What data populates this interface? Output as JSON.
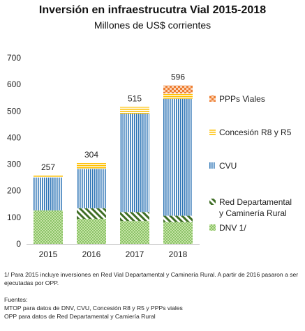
{
  "chart_data": {
    "type": "bar",
    "stacked": true,
    "title": "Inversión en infraestrucutra Vial 2015-2018",
    "subtitle": "Millones de US$ corrientes",
    "categories": [
      "2015",
      "2016",
      "2017",
      "2018"
    ],
    "yticks": [
      "0",
      "100",
      "200",
      "300",
      "400",
      "500",
      "600",
      "700"
    ],
    "ylim": [
      0,
      700
    ],
    "grid": false,
    "legend_position": "right",
    "totals": [
      "257",
      "304",
      "515",
      "596"
    ],
    "series": [
      {
        "name": "DNV 1/",
        "values": [
          126,
          94,
          86,
          82
        ],
        "color": "#92d050",
        "pattern": "dots"
      },
      {
        "name": "Red Departamental y Caminería Rural",
        "values": [
          0,
          40,
          34,
          24
        ],
        "color": "#548235",
        "pattern": "diagonal"
      },
      {
        "name": "CVU",
        "values": [
          124,
          148,
          370,
          440
        ],
        "color": "#2e75b6",
        "pattern": "vertical"
      },
      {
        "name": "Concesión R8 y R5",
        "values": [
          7,
          22,
          25,
          20
        ],
        "color": "#ffc000",
        "pattern": "horizontal"
      },
      {
        "name": "PPPs Viales",
        "values": [
          0,
          0,
          0,
          30
        ],
        "color": "#ed7d31",
        "pattern": "checker"
      }
    ]
  },
  "notes": {
    "footnote": "1/ Para 2015 incluye inversiones en Red Vial Departamental y Caminería Rural. A partir de 2016 pasaron a ser ejecutadas por OPP.",
    "sources_title": "Fuentes:",
    "source_1": "MTOP para datos de DNV, CVU, Concesión R8 y R5 y PPPs viales",
    "source_2": "OPP para datos de Red Departamental y Camiería Rural"
  }
}
